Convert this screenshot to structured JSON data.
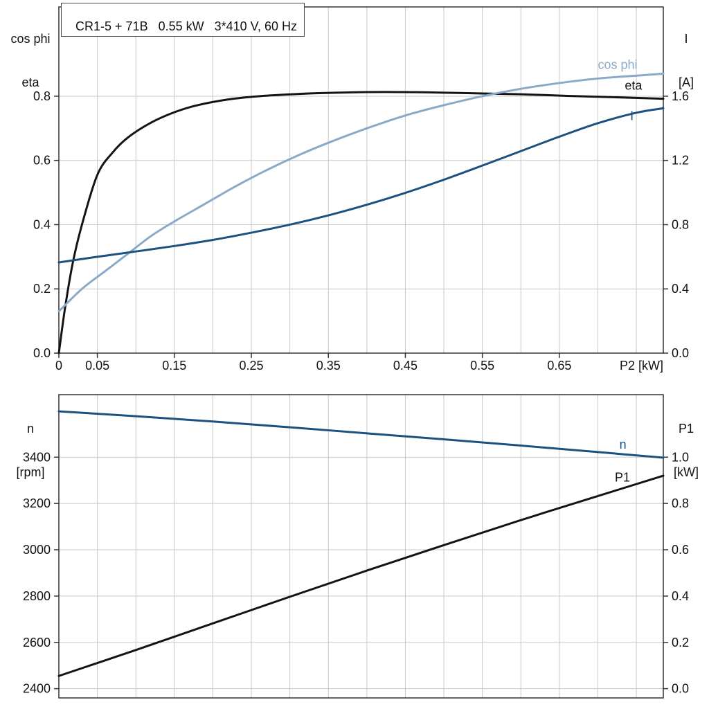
{
  "colors": {
    "black": "#141414",
    "light_blue": "#8aa9c8",
    "dark_blue": "#1a5180",
    "grid": "#c9c9c9",
    "axis": "#333333",
    "text": "#111111"
  },
  "corner_labels": {
    "top_left": [
      "cos phi",
      "eta"
    ],
    "top_right": [
      "I",
      "[A]"
    ],
    "bottom_left": [
      "n",
      "[rpm]"
    ],
    "bottom_right": [
      "P1",
      "[kW]"
    ]
  },
  "chart_data": [
    {
      "type": "line",
      "title": "CR1-5 + 71B   0.55 kW   3*410 V, 60 Hz",
      "xlabel": "P2 [kW]",
      "xlim": [
        0,
        0.785
      ],
      "x_grid_step": 0.05,
      "x_ticks": [
        [
          0,
          "0"
        ],
        [
          0.05,
          "0.05"
        ],
        [
          0.15,
          "0.15"
        ],
        [
          0.25,
          "0.25"
        ],
        [
          0.35,
          "0.35"
        ],
        [
          0.45,
          "0.45"
        ],
        [
          0.55,
          "0.55"
        ],
        [
          0.65,
          "0.65"
        ]
      ],
      "left_axis": {
        "label": "cos phi / eta",
        "lim": [
          0,
          1.078
        ],
        "ticks": [
          [
            0,
            "0.0"
          ],
          [
            0.2,
            "0.2"
          ],
          [
            0.4,
            "0.4"
          ],
          [
            0.6,
            "0.6"
          ],
          [
            0.8,
            "0.8"
          ]
        ]
      },
      "right_axis": {
        "label": "I [A]",
        "lim": [
          0,
          2.156
        ],
        "ticks": [
          [
            0,
            "0.0"
          ],
          [
            0.4,
            "0.4"
          ],
          [
            0.8,
            "0.8"
          ],
          [
            1.2,
            "1.2"
          ],
          [
            1.6,
            "1.6"
          ]
        ]
      },
      "series": [
        {
          "id": "eta",
          "label": "eta",
          "axis": "left",
          "color_key": "black",
          "label_at": [
            0.735,
            0.82
          ],
          "points": [
            [
              0,
              0
            ],
            [
              0.008,
              0.14
            ],
            [
              0.018,
              0.28
            ],
            [
              0.03,
              0.4
            ],
            [
              0.05,
              0.555
            ],
            [
              0.07,
              0.625
            ],
            [
              0.09,
              0.672
            ],
            [
              0.12,
              0.718
            ],
            [
              0.15,
              0.75
            ],
            [
              0.18,
              0.772
            ],
            [
              0.22,
              0.79
            ],
            [
              0.26,
              0.8
            ],
            [
              0.31,
              0.807
            ],
            [
              0.36,
              0.811
            ],
            [
              0.42,
              0.813
            ],
            [
              0.48,
              0.812
            ],
            [
              0.54,
              0.809
            ],
            [
              0.6,
              0.806
            ],
            [
              0.66,
              0.801
            ],
            [
              0.72,
              0.797
            ],
            [
              0.785,
              0.792
            ]
          ]
        },
        {
          "id": "cos-phi",
          "label": "cos phi",
          "axis": "left",
          "color_key": "light_blue",
          "label_at": [
            0.7,
            0.885
          ],
          "points": [
            [
              0,
              0.13
            ],
            [
              0.03,
              0.2
            ],
            [
              0.06,
              0.255
            ],
            [
              0.09,
              0.31
            ],
            [
              0.12,
              0.365
            ],
            [
              0.15,
              0.41
            ],
            [
              0.19,
              0.465
            ],
            [
              0.23,
              0.52
            ],
            [
              0.27,
              0.57
            ],
            [
              0.31,
              0.615
            ],
            [
              0.35,
              0.655
            ],
            [
              0.4,
              0.7
            ],
            [
              0.45,
              0.74
            ],
            [
              0.5,
              0.772
            ],
            [
              0.55,
              0.8
            ],
            [
              0.6,
              0.823
            ],
            [
              0.65,
              0.841
            ],
            [
              0.7,
              0.855
            ],
            [
              0.75,
              0.864
            ],
            [
              0.785,
              0.87
            ]
          ]
        },
        {
          "id": "current",
          "label": "I",
          "axis": "right",
          "color_key": "dark_blue",
          "label_at": [
            0.742,
            1.45
          ],
          "points": [
            [
              0,
              0.565
            ],
            [
              0.05,
              0.6
            ],
            [
              0.1,
              0.633
            ],
            [
              0.15,
              0.667
            ],
            [
              0.2,
              0.705
            ],
            [
              0.25,
              0.75
            ],
            [
              0.3,
              0.8
            ],
            [
              0.35,
              0.858
            ],
            [
              0.4,
              0.924
            ],
            [
              0.45,
              0.998
            ],
            [
              0.5,
              1.08
            ],
            [
              0.55,
              1.168
            ],
            [
              0.6,
              1.258
            ],
            [
              0.65,
              1.348
            ],
            [
              0.7,
              1.432
            ],
            [
              0.75,
              1.497
            ],
            [
              0.785,
              1.525
            ]
          ]
        }
      ]
    },
    {
      "type": "line",
      "title": "",
      "xlabel": "",
      "xlim": [
        0,
        0.785
      ],
      "x_grid_step": 0.05,
      "x_ticks": [],
      "left_axis": {
        "label": "n [rpm]",
        "lim": [
          2360,
          3670
        ],
        "ticks": [
          [
            2400,
            "2400"
          ],
          [
            2600,
            "2600"
          ],
          [
            2800,
            "2800"
          ],
          [
            3000,
            "3000"
          ],
          [
            3200,
            "3200"
          ],
          [
            3400,
            "3400"
          ]
        ]
      },
      "right_axis": {
        "label": "P1 [kW]",
        "lim": [
          -0.04,
          1.27
        ],
        "ticks": [
          [
            0,
            "0.0"
          ],
          [
            0.2,
            "0.2"
          ],
          [
            0.4,
            "0.4"
          ],
          [
            0.6,
            "0.6"
          ],
          [
            0.8,
            "0.8"
          ],
          [
            1.0,
            "1.0"
          ]
        ]
      },
      "series": [
        {
          "id": "speed",
          "label": "n",
          "axis": "left",
          "color_key": "dark_blue",
          "label_at": [
            0.728,
            3437
          ],
          "points": [
            [
              0,
              3598
            ],
            [
              0.1,
              3577
            ],
            [
              0.2,
              3554
            ],
            [
              0.3,
              3529
            ],
            [
              0.4,
              3503
            ],
            [
              0.5,
              3477
            ],
            [
              0.6,
              3450
            ],
            [
              0.7,
              3422
            ],
            [
              0.785,
              3398
            ]
          ]
        },
        {
          "id": "p1",
          "label": "P1",
          "axis": "right",
          "color_key": "black",
          "label_at": [
            0.722,
            0.895
          ],
          "points": [
            [
              0,
              0.055
            ],
            [
              0.1,
              0.167
            ],
            [
              0.2,
              0.282
            ],
            [
              0.3,
              0.397
            ],
            [
              0.4,
              0.51
            ],
            [
              0.5,
              0.62
            ],
            [
              0.6,
              0.728
            ],
            [
              0.7,
              0.832
            ],
            [
              0.785,
              0.92
            ]
          ]
        }
      ]
    }
  ]
}
